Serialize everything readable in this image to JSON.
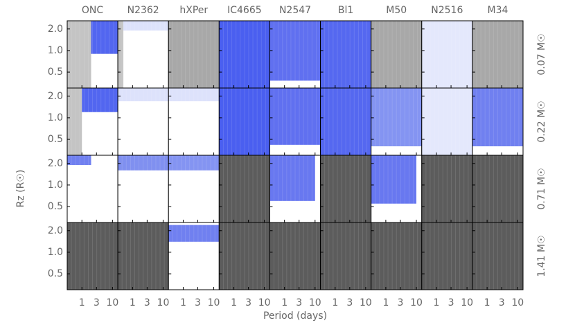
{
  "chart_data": {
    "type": "heatmap",
    "columns": [
      "ONC",
      "N2362",
      "hXPer",
      "IC4665",
      "N2547",
      "Bl1",
      "M50",
      "N2516",
      "M34"
    ],
    "rows": [
      "0.07 M☉",
      "0.22 M☉",
      "0.71 M☉",
      "1.41 M☉"
    ],
    "xlabel": "Period (days)",
    "ylabel": "Rz (R☉)",
    "log_x": true,
    "log_y": true,
    "xlim": [
      0.33,
      15
    ],
    "ylim": [
      0.3,
      2.6
    ],
    "xticks": [
      1,
      3,
      10
    ],
    "yticks": [
      {
        "value": 0.5,
        "label": "0.5"
      },
      {
        "value": 1,
        "label": "1.0"
      },
      {
        "value": 2,
        "label": "2.0"
      }
    ],
    "panels": [
      [
        {
          "background": "#c4c4c4",
          "fills": [
            {
              "color": "#ffffff",
              "xlim": [
                2,
                15
              ],
              "ylim": [
                0.3,
                0.9
              ]
            },
            {
              "color": "#5266f0",
              "xlim": [
                2,
                15
              ],
              "ylim": [
                0.9,
                2.6
              ]
            }
          ]
        },
        {
          "background": "#ffffff",
          "fills": [
            {
              "color": "#c4c4c4",
              "xlim": [
                0.33,
                0.5
              ],
              "ylim": [
                0.3,
                2.6
              ]
            },
            {
              "color": "#dde2fb",
              "xlim": [
                0.5,
                15
              ],
              "ylim": [
                1.9,
                2.6
              ]
            }
          ]
        },
        {
          "background": "#a8a8a8",
          "fills": []
        },
        {
          "background": "#4a5ff0",
          "fills": []
        },
        {
          "background": "#6070f0",
          "fills": [
            {
              "color": "#ffffff",
              "ylim": [
                0.3,
                0.38
              ]
            }
          ]
        },
        {
          "background": "#5568f0",
          "fills": []
        },
        {
          "background": "#a8a8a8",
          "fills": []
        },
        {
          "background": "#e4e8fc",
          "fills": []
        },
        {
          "background": "#a8a8a8",
          "fills": []
        }
      ],
      [
        {
          "background": "#ffffff",
          "fills": [
            {
              "color": "#c4c4c4",
              "xlim": [
                0.33,
                1
              ],
              "ylim": [
                0.3,
                2.6
              ]
            },
            {
              "color": "#5266f0",
              "xlim": [
                1,
                15
              ],
              "ylim": [
                1.2,
                2.6
              ]
            }
          ]
        },
        {
          "background": "#ffffff",
          "fills": [
            {
              "color": "#dde2fb",
              "ylim": [
                1.7,
                2.6
              ]
            }
          ]
        },
        {
          "background": "#ffffff",
          "fills": [
            {
              "color": "#dde2fb",
              "ylim": [
                1.7,
                2.6
              ]
            }
          ]
        },
        {
          "background": "#4a5ff0",
          "fills": []
        },
        {
          "background": "#6070f0",
          "fills": [
            {
              "color": "#ffffff",
              "ylim": [
                0.3,
                0.42
              ]
            }
          ]
        },
        {
          "background": "#5568f0",
          "fills": []
        },
        {
          "background": "#8494f2",
          "fills": [
            {
              "color": "#ffffff",
              "ylim": [
                0.3,
                0.4
              ]
            }
          ]
        },
        {
          "background": "#e4e8fc",
          "fills": []
        },
        {
          "background": "#7080f0",
          "fills": [
            {
              "color": "#ffffff",
              "ylim": [
                0.3,
                0.4
              ]
            }
          ]
        }
      ],
      [
        {
          "background": "#ffffff",
          "fills": [
            {
              "color": "#7080f0",
              "xlim": [
                0.33,
                2
              ],
              "ylim": [
                1.9,
                2.6
              ]
            }
          ]
        },
        {
          "background": "#ffffff",
          "fills": [
            {
              "color": "#8090f0",
              "ylim": [
                1.6,
                2.6
              ]
            }
          ]
        },
        {
          "background": "#ffffff",
          "fills": [
            {
              "color": "#8494f2",
              "ylim": [
                1.6,
                2.6
              ]
            }
          ]
        },
        {
          "background": "#5c5c5c",
          "fills": []
        },
        {
          "background": "#ffffff",
          "fills": [
            {
              "color": "#6878f0",
              "xlim": [
                0.33,
                10
              ],
              "ylim": [
                0.6,
                2.6
              ]
            }
          ]
        },
        {
          "background": "#5c5c5c",
          "fills": []
        },
        {
          "background": "#ffffff",
          "fills": [
            {
              "color": "#6878f0",
              "xlim": [
                0.33,
                10
              ],
              "ylim": [
                0.55,
                2.6
              ]
            }
          ]
        },
        {
          "background": "#5c5c5c",
          "fills": []
        },
        {
          "background": "#5c5c5c",
          "fills": []
        }
      ],
      [
        {
          "background": "#5c5c5c",
          "fills": []
        },
        {
          "background": "#5c5c5c",
          "fills": []
        },
        {
          "background": "#ffffff",
          "fills": [
            {
              "color": "#7080f0",
              "ylim": [
                1.4,
                2.4
              ]
            }
          ]
        },
        {
          "background": "#5c5c5c",
          "fills": []
        },
        {
          "background": "#5c5c5c",
          "fills": []
        },
        {
          "background": "#5c5c5c",
          "fills": []
        },
        {
          "background": "#5c5c5c",
          "fills": []
        },
        {
          "background": "#5c5c5c",
          "fills": []
        },
        {
          "background": "#5c5c5c",
          "fills": []
        }
      ]
    ]
  }
}
